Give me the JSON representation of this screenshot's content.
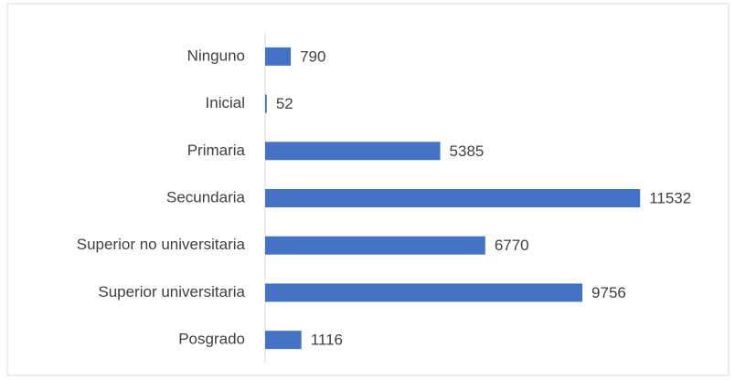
{
  "chart_data": {
    "type": "bar",
    "orientation": "horizontal",
    "categories": [
      "Ninguno",
      "Inicial",
      "Primaria",
      "Secundaria",
      "Superior no universitaria",
      "Superior universitaria",
      "Posgrado"
    ],
    "values": [
      790,
      52,
      5385,
      11532,
      6770,
      9756,
      1116
    ],
    "color": "#4472c4",
    "xlim": [
      0,
      14000
    ]
  }
}
